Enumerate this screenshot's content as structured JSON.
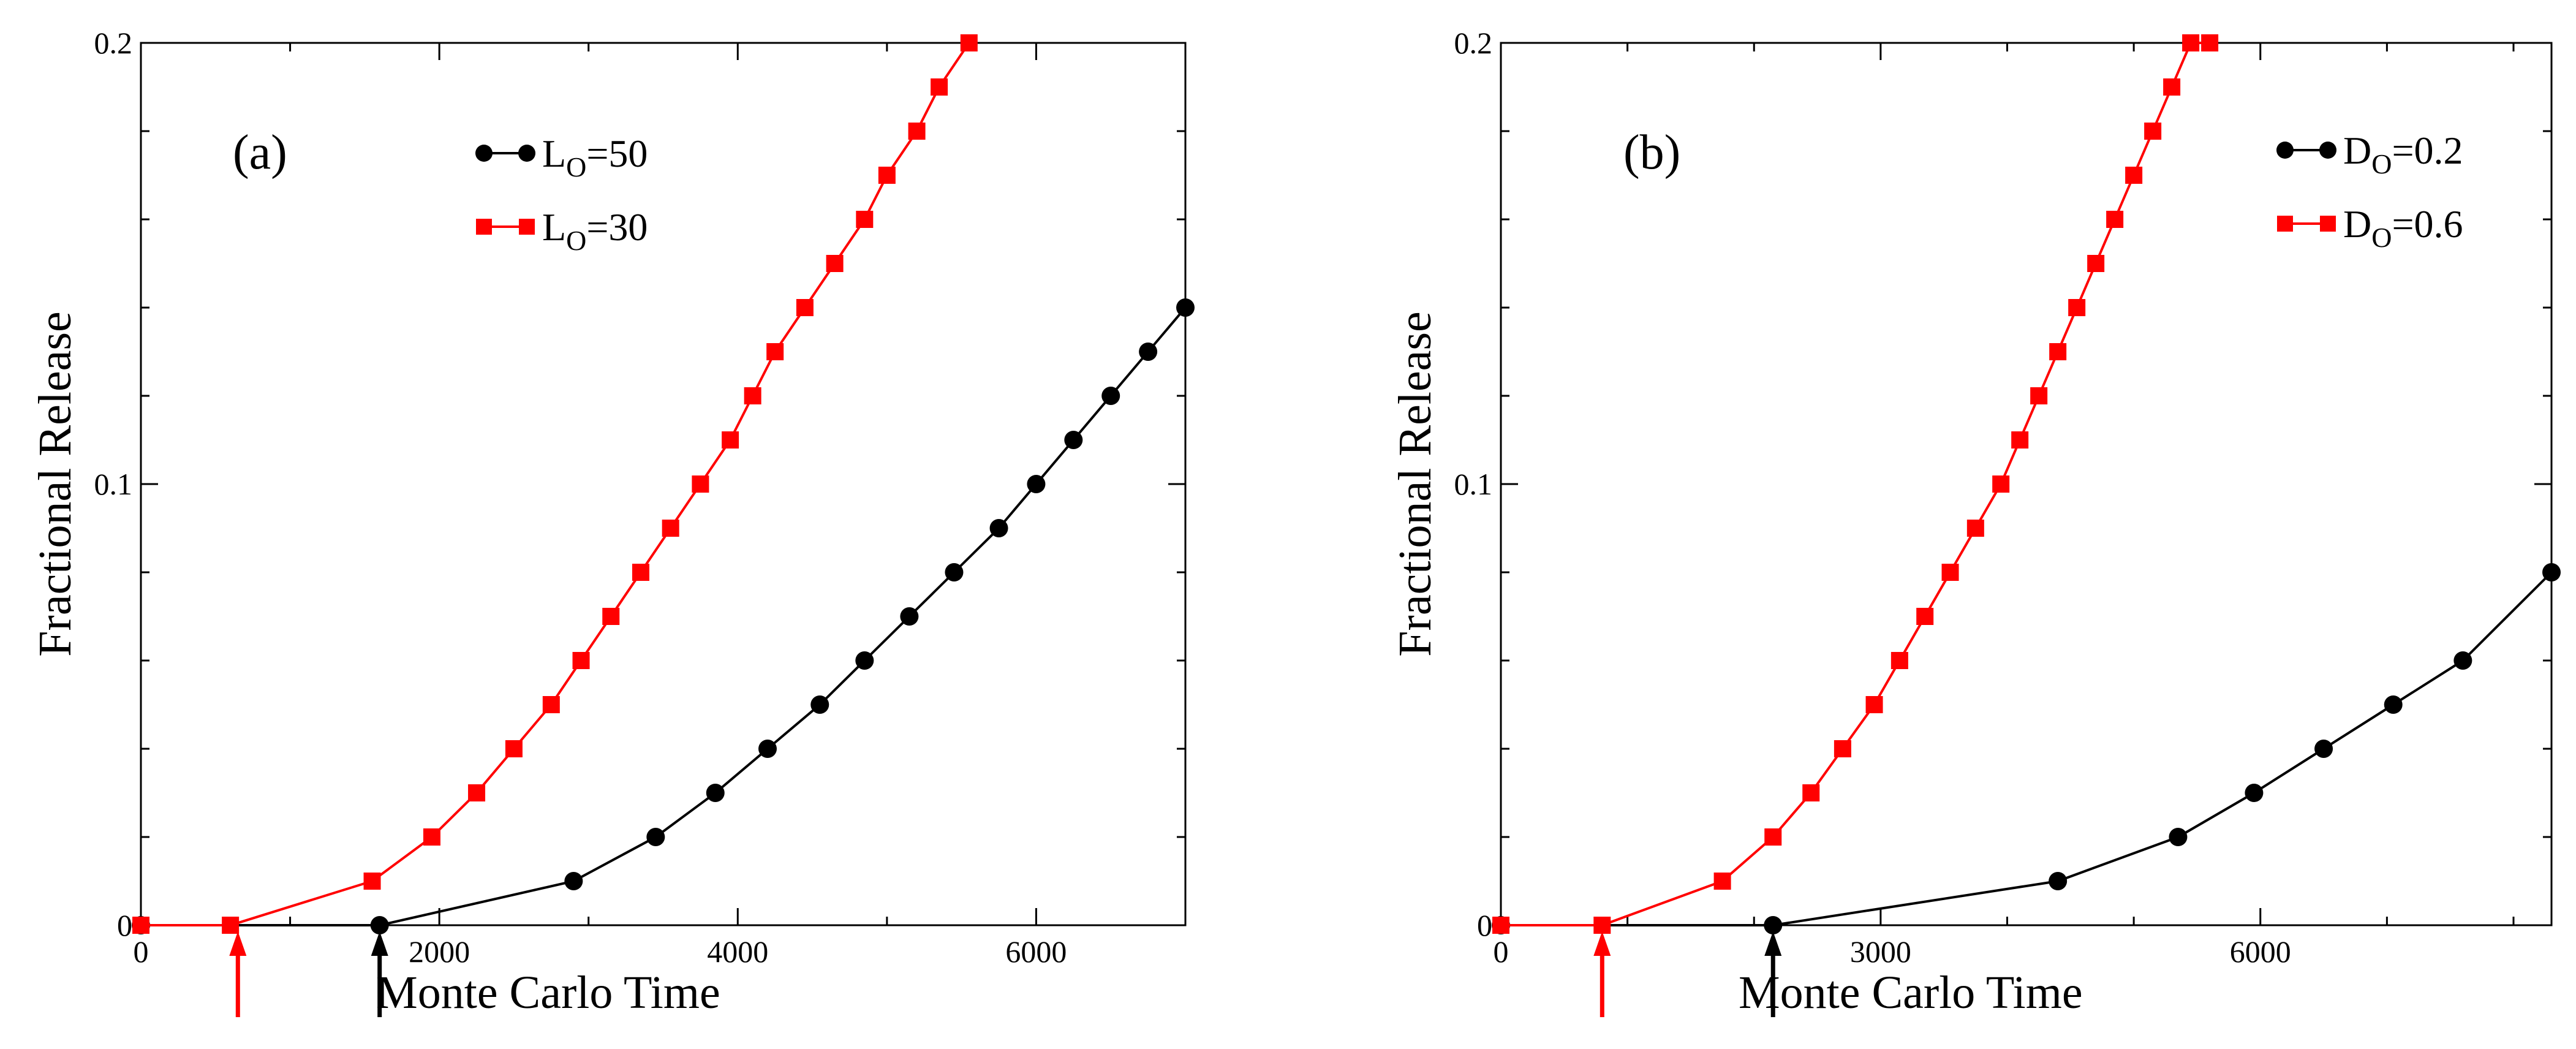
{
  "chart_data": [
    {
      "type": "line",
      "panel_label": "(a)",
      "xlabel": "Monte Carlo Time",
      "ylabel": "Fractional Release",
      "xlim": [
        0,
        7000
      ],
      "ylim": [
        0,
        0.2
      ],
      "x_ticks": [
        0,
        2000,
        4000,
        6000
      ],
      "x_tick_labels": [
        "0",
        "2000",
        "4000",
        "6000"
      ],
      "y_ticks": [
        0,
        0.1,
        0.2
      ],
      "y_tick_labels": [
        "0",
        "0.1",
        "0.2"
      ],
      "x_minor_step": 1000,
      "y_minor_step": 0.02,
      "legend_position": "top-center",
      "series": [
        {
          "name": "LO=50",
          "legend_main": "L",
          "legend_sub": "O",
          "legend_rest": "=50",
          "color": "#000000",
          "marker": "circle",
          "x": [
            0,
            1600,
            2900,
            3450,
            3850,
            4200,
            4550,
            4850,
            5150,
            5450,
            5750,
            6000,
            6250,
            6500,
            6750,
            7000
          ],
          "y": [
            0,
            0,
            0.01,
            0.02,
            0.03,
            0.04,
            0.05,
            0.06,
            0.07,
            0.08,
            0.09,
            0.1,
            0.11,
            0.12,
            0.13,
            0.14
          ]
        },
        {
          "name": "LO=30",
          "legend_main": "L",
          "legend_sub": "O",
          "legend_rest": "=30",
          "color": "#ff0000",
          "marker": "square",
          "x": [
            0,
            600,
            1550,
            1950,
            2250,
            2500,
            2750,
            2950,
            3150,
            3350,
            3550,
            3750,
            3950,
            4100,
            4250,
            4450,
            4650,
            4850,
            5000,
            5200,
            5350,
            5550
          ],
          "y": [
            0,
            0,
            0.01,
            0.02,
            0.03,
            0.04,
            0.05,
            0.06,
            0.07,
            0.08,
            0.09,
            0.1,
            0.11,
            0.12,
            0.13,
            0.14,
            0.15,
            0.16,
            0.17,
            0.18,
            0.19,
            0.2
          ]
        }
      ],
      "arrows": [
        {
          "x": 650,
          "color": "#ff0000"
        },
        {
          "x": 1600,
          "color": "#000000"
        }
      ]
    },
    {
      "type": "line",
      "panel_label": "(b)",
      "xlabel": "Monte Carlo Time",
      "ylabel": "Fractional Release",
      "xlim": [
        0,
        8300
      ],
      "ylim": [
        0,
        0.2
      ],
      "x_ticks": [
        0,
        3000,
        6000
      ],
      "x_tick_labels": [
        "0",
        "3000",
        "6000"
      ],
      "y_ticks": [
        0,
        0.1,
        0.2
      ],
      "y_tick_labels": [
        "0",
        "0.1",
        "0.2"
      ],
      "x_minor_step": 1000,
      "y_minor_step": 0.02,
      "legend_position": "top-right",
      "series": [
        {
          "name": "DO=0.2",
          "legend_main": "D",
          "legend_sub": "O",
          "legend_rest": "=0.2",
          "color": "#000000",
          "marker": "circle",
          "x": [
            0,
            2150,
            4400,
            5350,
            5950,
            6500,
            7050,
            7600,
            8300
          ],
          "y": [
            0,
            0,
            0.01,
            0.02,
            0.03,
            0.04,
            0.05,
            0.06,
            0.08
          ]
        },
        {
          "name": "DO=0.6",
          "legend_main": "D",
          "legend_sub": "O",
          "legend_rest": "=0.6",
          "color": "#ff0000",
          "marker": "square",
          "x": [
            0,
            800,
            1750,
            2150,
            2450,
            2700,
            2950,
            3150,
            3350,
            3550,
            3750,
            3950,
            4100,
            4250,
            4400,
            4550,
            4700,
            4850,
            5000,
            5150,
            5300,
            5450,
            5600
          ],
          "y": [
            0,
            0,
            0.01,
            0.02,
            0.03,
            0.04,
            0.05,
            0.06,
            0.07,
            0.08,
            0.09,
            0.1,
            0.11,
            0.12,
            0.13,
            0.14,
            0.15,
            0.16,
            0.17,
            0.18,
            0.19,
            0.2,
            0.2
          ]
        }
      ],
      "arrows": [
        {
          "x": 800,
          "color": "#ff0000"
        },
        {
          "x": 2150,
          "color": "#000000"
        }
      ]
    }
  ]
}
